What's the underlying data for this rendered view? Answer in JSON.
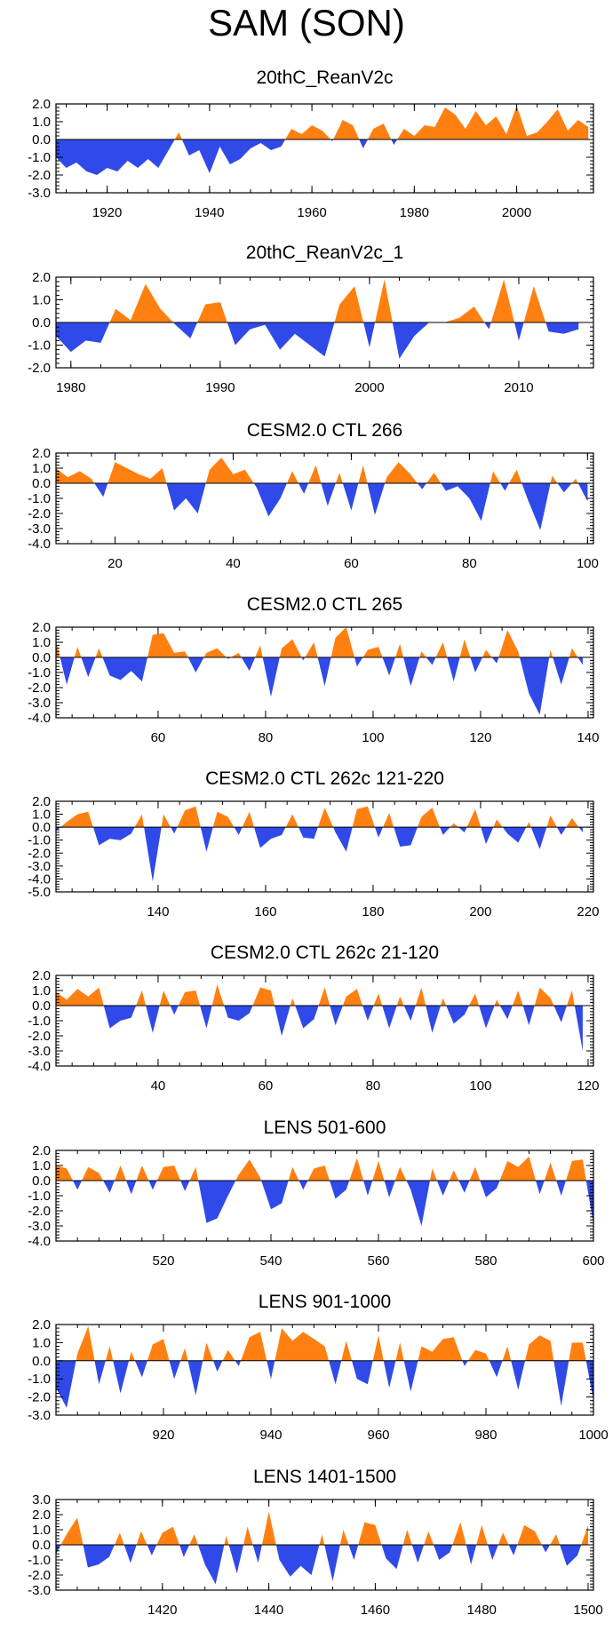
{
  "title": "SAM (SON)",
  "colors": {
    "positive": "#ff8011",
    "negative": "#2f4ae8",
    "axis": "#000000"
  },
  "chart_data": [
    {
      "type": "area",
      "title": "20thC_ReanV2c",
      "xlim": [
        1910,
        2015
      ],
      "ylim": [
        -3.0,
        2.0
      ],
      "yticks": [
        "2.0",
        "1.0",
        "0.0",
        "-1.0",
        "-2.0",
        "-3.0"
      ],
      "xticks": [
        1920,
        1940,
        1960,
        1980,
        2000
      ],
      "x": [
        1910,
        1912,
        1914,
        1916,
        1918,
        1920,
        1922,
        1924,
        1926,
        1928,
        1930,
        1932,
        1934,
        1936,
        1938,
        1940,
        1942,
        1944,
        1946,
        1948,
        1950,
        1952,
        1954,
        1956,
        1958,
        1960,
        1962,
        1964,
        1966,
        1968,
        1970,
        1972,
        1974,
        1976,
        1978,
        1980,
        1982,
        1984,
        1986,
        1988,
        1990,
        1992,
        1994,
        1996,
        1998,
        2000,
        2002,
        2004,
        2006,
        2008,
        2010,
        2012,
        2014
      ],
      "values": [
        -1.0,
        -1.6,
        -1.3,
        -1.8,
        -2.0,
        -1.6,
        -1.8,
        -1.2,
        -1.6,
        -1.1,
        -1.6,
        -0.6,
        0.4,
        -0.9,
        -0.6,
        -1.9,
        -0.4,
        -1.4,
        -1.1,
        -0.5,
        -0.2,
        -0.6,
        -0.4,
        0.6,
        0.3,
        0.8,
        0.5,
        -0.1,
        1.1,
        0.8,
        -0.5,
        0.6,
        0.9,
        -0.3,
        0.6,
        0.2,
        0.8,
        0.7,
        1.8,
        1.4,
        0.6,
        1.6,
        0.8,
        1.3,
        0.3,
        1.9,
        0.2,
        0.4,
        1.0,
        1.7,
        0.5,
        1.1,
        0.7
      ]
    },
    {
      "type": "area",
      "title": "20thC_ReanV2c_1",
      "xlim": [
        1979,
        2015
      ],
      "ylim": [
        -2.0,
        2.0
      ],
      "yticks": [
        "2.0",
        "1.0",
        "0.0",
        "-1.0",
        "-2.0"
      ],
      "xticks": [
        1980,
        1990,
        2000,
        2010
      ],
      "x": [
        1979,
        1980,
        1981,
        1982,
        1983,
        1984,
        1985,
        1986,
        1987,
        1988,
        1989,
        1990,
        1991,
        1992,
        1993,
        1994,
        1995,
        1996,
        1997,
        1998,
        1999,
        2000,
        2001,
        2002,
        2003,
        2004,
        2005,
        2006,
        2007,
        2008,
        2009,
        2010,
        2011,
        2012,
        2013,
        2014
      ],
      "values": [
        -0.6,
        -1.3,
        -0.8,
        -0.9,
        0.6,
        0.1,
        1.7,
        0.6,
        -0.1,
        -0.7,
        0.8,
        0.9,
        -1.0,
        -0.3,
        -0.1,
        -1.2,
        -0.5,
        -1.0,
        -1.5,
        0.8,
        1.6,
        -1.1,
        1.9,
        -1.6,
        -0.6,
        0.0,
        0.0,
        0.2,
        0.7,
        -0.3,
        1.9,
        -0.8,
        1.6,
        -0.4,
        -0.5,
        -0.3
      ]
    },
    {
      "type": "area",
      "title": "CESM2.0 CTL 266",
      "xlim": [
        10,
        101
      ],
      "ylim": [
        -4.0,
        2.0
      ],
      "yticks": [
        "2.0",
        "1.0",
        "0.0",
        "-1.0",
        "-2.0",
        "-3.0",
        "-4.0"
      ],
      "xticks": [
        20,
        40,
        60,
        80,
        100
      ],
      "x": [
        10,
        12,
        14,
        16,
        18,
        20,
        22,
        24,
        26,
        28,
        30,
        32,
        34,
        36,
        38,
        40,
        42,
        44,
        46,
        48,
        50,
        52,
        54,
        56,
        58,
        60,
        62,
        64,
        66,
        68,
        70,
        72,
        74,
        76,
        78,
        80,
        82,
        84,
        86,
        88,
        90,
        92,
        94,
        96,
        98,
        100
      ],
      "values": [
        1.0,
        0.4,
        0.8,
        0.3,
        -0.9,
        1.4,
        1.0,
        0.6,
        0.3,
        1.0,
        -1.8,
        -1.0,
        -2.0,
        0.9,
        1.7,
        0.6,
        0.9,
        -0.3,
        -2.2,
        -1.0,
        0.8,
        -0.7,
        1.2,
        -1.5,
        0.7,
        -1.8,
        1.2,
        -2.1,
        0.4,
        1.4,
        0.6,
        -0.4,
        0.7,
        -0.5,
        -0.2,
        -1.0,
        -2.5,
        0.8,
        -0.5,
        0.9,
        -1.2,
        -3.1,
        0.5,
        -0.6,
        0.3,
        -1.2
      ]
    },
    {
      "type": "area",
      "title": "CESM2.0 CTL 265",
      "xlim": [
        41,
        141
      ],
      "ylim": [
        -4.0,
        2.0
      ],
      "yticks": [
        "2.0",
        "1.0",
        "0.0",
        "-1.0",
        "-2.0",
        "-3.0",
        "-4.0"
      ],
      "xticks": [
        60,
        80,
        100,
        120,
        140
      ],
      "x": [
        41,
        43,
        45,
        47,
        49,
        51,
        53,
        55,
        57,
        59,
        61,
        63,
        65,
        67,
        69,
        71,
        73,
        75,
        77,
        79,
        81,
        83,
        85,
        87,
        89,
        91,
        93,
        95,
        97,
        99,
        101,
        103,
        105,
        107,
        109,
        111,
        113,
        115,
        117,
        119,
        121,
        123,
        125,
        127,
        129,
        131,
        133,
        135,
        137,
        139
      ],
      "values": [
        1.1,
        -1.8,
        0.7,
        -1.3,
        0.6,
        -1.2,
        -1.5,
        -0.9,
        -1.6,
        1.5,
        1.6,
        0.3,
        0.4,
        -1.0,
        0.3,
        0.6,
        -0.1,
        0.3,
        -0.9,
        0.8,
        -2.6,
        0.6,
        1.2,
        -0.2,
        1.0,
        -1.9,
        1.3,
        2.0,
        -0.6,
        0.5,
        0.7,
        -1.2,
        0.9,
        -1.9,
        0.4,
        -0.5,
        1.0,
        -1.6,
        1.2,
        -1.0,
        0.5,
        -0.4,
        1.8,
        0.4,
        -2.4,
        -3.8,
        0.5,
        -1.8,
        0.6,
        -0.5
      ]
    },
    {
      "type": "area",
      "title": "CESM2.0 CTL 262c 121-220",
      "xlim": [
        121,
        221
      ],
      "ylim": [
        -5.0,
        2.0
      ],
      "yticks": [
        "2.0",
        "1.0",
        "0.0",
        "-1.0",
        "-2.0",
        "-3.0",
        "-4.0",
        "-5.0"
      ],
      "xticks": [
        140,
        160,
        180,
        200,
        220
      ],
      "x": [
        121,
        123,
        125,
        127,
        129,
        131,
        133,
        135,
        137,
        139,
        141,
        143,
        145,
        147,
        149,
        151,
        153,
        155,
        157,
        159,
        161,
        163,
        165,
        167,
        169,
        171,
        173,
        175,
        177,
        179,
        181,
        183,
        185,
        187,
        189,
        191,
        193,
        195,
        197,
        199,
        201,
        203,
        205,
        207,
        209,
        211,
        213,
        215,
        217,
        219
      ],
      "values": [
        -0.3,
        0.4,
        1.0,
        1.2,
        -1.4,
        -0.9,
        -1.0,
        -0.5,
        1.0,
        -4.2,
        1.0,
        -0.5,
        1.3,
        1.6,
        -1.9,
        1.2,
        0.8,
        -0.6,
        1.2,
        -1.6,
        -0.9,
        -0.6,
        1.0,
        -0.8,
        -0.9,
        1.5,
        -0.4,
        -1.9,
        1.4,
        1.6,
        -0.8,
        1.1,
        -1.5,
        -1.4,
        0.8,
        1.5,
        -0.6,
        0.3,
        -0.4,
        1.4,
        -1.3,
        0.6,
        -0.5,
        -1.2,
        0.4,
        -1.7,
        0.9,
        -0.6,
        0.7,
        -0.4
      ]
    },
    {
      "type": "area",
      "title": "CESM2.0 CTL 262c 21-120",
      "xlim": [
        21,
        121
      ],
      "ylim": [
        -4.0,
        2.0
      ],
      "yticks": [
        "2.0",
        "1.0",
        "0.0",
        "-1.0",
        "-2.0",
        "-3.0",
        "-4.0"
      ],
      "xticks": [
        40,
        60,
        80,
        100,
        120
      ],
      "x": [
        21,
        23,
        25,
        27,
        29,
        31,
        33,
        35,
        37,
        39,
        41,
        43,
        45,
        47,
        49,
        51,
        53,
        55,
        57,
        59,
        61,
        63,
        65,
        67,
        69,
        71,
        73,
        75,
        77,
        79,
        81,
        83,
        85,
        87,
        89,
        91,
        93,
        95,
        97,
        99,
        101,
        103,
        105,
        107,
        109,
        111,
        113,
        115,
        117,
        119
      ],
      "values": [
        0.9,
        0.4,
        1.1,
        0.6,
        1.2,
        -1.5,
        -1.0,
        -0.8,
        1.0,
        -1.8,
        1.0,
        -0.6,
        0.9,
        1.0,
        -1.5,
        1.4,
        -0.8,
        -1.0,
        -0.5,
        1.2,
        1.0,
        -2.0,
        0.5,
        -1.5,
        -0.9,
        1.2,
        -1.3,
        0.6,
        1.1,
        -1.0,
        0.8,
        -1.5,
        0.6,
        -1.0,
        1.2,
        -1.8,
        0.5,
        -1.2,
        -0.6,
        0.8,
        -1.5,
        0.4,
        -0.9,
        1.0,
        -1.3,
        1.2,
        0.5,
        -1.1,
        1.0,
        -3.0
      ]
    },
    {
      "type": "area",
      "title": "LENS 501-600",
      "xlim": [
        500,
        600
      ],
      "ylim": [
        -4.0,
        2.0
      ],
      "yticks": [
        "2.0",
        "1.0",
        "0.0",
        "-1.0",
        "-2.0",
        "-3.0",
        "-4.0"
      ],
      "xticks": [
        520,
        540,
        560,
        580,
        600
      ],
      "x": [
        500,
        502,
        504,
        506,
        508,
        510,
        512,
        514,
        516,
        518,
        520,
        522,
        524,
        526,
        528,
        530,
        532,
        534,
        536,
        538,
        540,
        542,
        544,
        546,
        548,
        550,
        552,
        554,
        556,
        558,
        560,
        562,
        564,
        566,
        568,
        570,
        572,
        574,
        576,
        578,
        580,
        582,
        584,
        586,
        588,
        590,
        592,
        594,
        596,
        598,
        600
      ],
      "values": [
        1.0,
        0.8,
        -0.6,
        0.9,
        0.5,
        -0.8,
        1.0,
        -0.9,
        1.0,
        -0.6,
        0.9,
        1.0,
        -0.7,
        0.9,
        -2.8,
        -2.5,
        -1.0,
        0.4,
        1.4,
        0.2,
        -1.9,
        -1.5,
        0.9,
        -0.6,
        0.8,
        1.0,
        -1.2,
        -0.6,
        1.5,
        -1.0,
        1.3,
        -1.1,
        0.9,
        -0.6,
        -3.0,
        0.8,
        -1.0,
        0.7,
        -0.8,
        0.9,
        -1.1,
        -0.5,
        1.3,
        0.9,
        1.6,
        -0.9,
        1.2,
        -1.0,
        1.3,
        1.4,
        -2.9
      ]
    },
    {
      "type": "area",
      "title": "LENS 901-1000",
      "xlim": [
        900,
        1000
      ],
      "ylim": [
        -3.0,
        2.0
      ],
      "yticks": [
        "2.0",
        "1.0",
        "0.0",
        "-1.0",
        "-2.0",
        "-3.0"
      ],
      "xticks": [
        920,
        940,
        960,
        980,
        1000
      ],
      "x": [
        900,
        902,
        904,
        906,
        908,
        910,
        912,
        914,
        916,
        918,
        920,
        922,
        924,
        926,
        928,
        930,
        932,
        934,
        936,
        938,
        940,
        942,
        944,
        946,
        948,
        950,
        952,
        954,
        956,
        958,
        960,
        962,
        964,
        966,
        968,
        970,
        972,
        974,
        976,
        978,
        980,
        982,
        984,
        986,
        988,
        990,
        992,
        994,
        996,
        998,
        1000
      ],
      "values": [
        -1.5,
        -2.6,
        0.4,
        1.9,
        -1.3,
        0.8,
        -1.8,
        0.5,
        -0.9,
        0.9,
        1.2,
        -1.0,
        0.7,
        -1.9,
        1.0,
        -0.6,
        0.6,
        -0.3,
        1.3,
        1.6,
        -1.0,
        1.8,
        1.1,
        1.6,
        1.2,
        0.8,
        -1.3,
        1.1,
        -1.0,
        -1.3,
        1.4,
        -1.5,
        1.0,
        -1.7,
        0.8,
        0.5,
        1.2,
        1.3,
        -0.3,
        0.6,
        0.4,
        -0.9,
        0.8,
        -1.6,
        0.9,
        1.4,
        1.1,
        -2.5,
        1.0,
        1.0,
        -2.2
      ]
    },
    {
      "type": "area",
      "title": "LENS 1401-1500",
      "xlim": [
        1400,
        1501
      ],
      "ylim": [
        -3.0,
        3.0
      ],
      "yticks": [
        "3.0",
        "2.0",
        "1.0",
        "0.0",
        "-1.0",
        "-2.0",
        "-3.0"
      ],
      "xticks": [
        1420,
        1440,
        1460,
        1480,
        1500
      ],
      "x": [
        1400,
        1402,
        1404,
        1406,
        1408,
        1410,
        1412,
        1414,
        1416,
        1418,
        1420,
        1422,
        1424,
        1426,
        1428,
        1430,
        1432,
        1434,
        1436,
        1438,
        1440,
        1442,
        1444,
        1446,
        1448,
        1450,
        1452,
        1454,
        1456,
        1458,
        1460,
        1462,
        1464,
        1466,
        1468,
        1470,
        1472,
        1474,
        1476,
        1478,
        1480,
        1482,
        1484,
        1486,
        1488,
        1490,
        1492,
        1494,
        1496,
        1498,
        1500
      ],
      "values": [
        -0.6,
        0.7,
        1.8,
        -1.5,
        -1.3,
        -0.8,
        0.8,
        -1.2,
        0.9,
        -0.7,
        0.8,
        1.2,
        -0.8,
        0.7,
        -1.3,
        -2.6,
        0.6,
        -1.9,
        1.2,
        -1.2,
        2.2,
        -1.0,
        -2.1,
        -1.4,
        -2.0,
        0.7,
        -2.4,
        1.0,
        -1.0,
        1.5,
        1.3,
        -0.9,
        -1.6,
        1.0,
        -1.2,
        0.9,
        -1.0,
        -0.5,
        1.5,
        -1.3,
        1.3,
        -1.0,
        0.8,
        -0.7,
        1.3,
        0.9,
        -0.5,
        0.7,
        -1.4,
        -0.7,
        1.3
      ]
    }
  ]
}
